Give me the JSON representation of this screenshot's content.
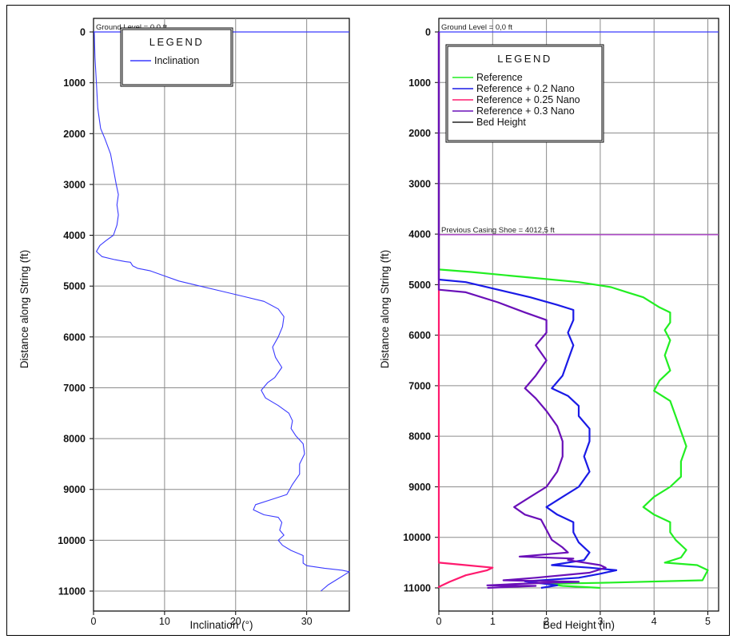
{
  "chart_data": [
    {
      "type": "line",
      "orientation": "vertical-depth",
      "title": "",
      "xlabel": "Inclination (°)",
      "ylabel": "Distance along String (ft)",
      "xlim": [
        0,
        36
      ],
      "ylim": [
        0,
        11000
      ],
      "y_inverted": true,
      "xticks": [
        0,
        10,
        20,
        30
      ],
      "yticks": [
        0,
        1000,
        2000,
        3000,
        4000,
        5000,
        6000,
        7000,
        8000,
        9000,
        10000,
        11000
      ],
      "grid": true,
      "legend": {
        "title": "LEGEND",
        "placement": "top-center"
      },
      "annotations": [
        {
          "text": "Ground Level = 0,0 ft",
          "depth": 0
        }
      ],
      "series": [
        {
          "name": "Inclination",
          "color": "#3a3aff",
          "points": [
            [
              0.1,
              0
            ],
            [
              0.2,
              500
            ],
            [
              0.4,
              1000
            ],
            [
              0.6,
              1500
            ],
            [
              1.0,
              1900
            ],
            [
              1.6,
              2100
            ],
            [
              2.4,
              2400
            ],
            [
              2.8,
              2700
            ],
            [
              3.2,
              3000
            ],
            [
              3.5,
              3200
            ],
            [
              3.3,
              3400
            ],
            [
              3.5,
              3600
            ],
            [
              3.3,
              3800
            ],
            [
              2.8,
              4000
            ],
            [
              1.8,
              4100
            ],
            [
              0.9,
              4200
            ],
            [
              0.4,
              4320
            ],
            [
              1.2,
              4420
            ],
            [
              3.0,
              4480
            ],
            [
              4.5,
              4520
            ],
            [
              5.2,
              4530
            ],
            [
              5.5,
              4600
            ],
            [
              6.2,
              4650
            ],
            [
              8.0,
              4700
            ],
            [
              10.0,
              4800
            ],
            [
              12.0,
              4900
            ],
            [
              15.0,
              5000
            ],
            [
              18.0,
              5100
            ],
            [
              21.0,
              5200
            ],
            [
              24.0,
              5300
            ],
            [
              26.0,
              5450
            ],
            [
              26.8,
              5600
            ],
            [
              26.6,
              5800
            ],
            [
              26.0,
              6000
            ],
            [
              25.2,
              6200
            ],
            [
              25.6,
              6400
            ],
            [
              26.5,
              6600
            ],
            [
              25.5,
              6800
            ],
            [
              24.5,
              6900
            ],
            [
              23.6,
              7050
            ],
            [
              24.2,
              7200
            ],
            [
              26.0,
              7350
            ],
            [
              27.5,
              7500
            ],
            [
              28.0,
              7650
            ],
            [
              27.8,
              7800
            ],
            [
              28.5,
              7950
            ],
            [
              29.5,
              8100
            ],
            [
              29.7,
              8300
            ],
            [
              29.0,
              8500
            ],
            [
              29.0,
              8700
            ],
            [
              28.0,
              8900
            ],
            [
              27.2,
              9100
            ],
            [
              25.0,
              9200
            ],
            [
              22.8,
              9300
            ],
            [
              22.5,
              9400
            ],
            [
              24.0,
              9500
            ],
            [
              26.0,
              9550
            ],
            [
              26.5,
              9650
            ],
            [
              26.2,
              9800
            ],
            [
              26.8,
              9900
            ],
            [
              26.0,
              10000
            ],
            [
              26.6,
              10100
            ],
            [
              27.8,
              10200
            ],
            [
              29.5,
              10300
            ],
            [
              29.5,
              10450
            ],
            [
              30.0,
              10500
            ],
            [
              32.5,
              10550
            ],
            [
              35.0,
              10590
            ],
            [
              36.0,
              10620
            ],
            [
              34.5,
              10750
            ],
            [
              33.0,
              10880
            ],
            [
              32.0,
              11000
            ]
          ]
        }
      ]
    },
    {
      "type": "line",
      "orientation": "vertical-depth",
      "title": "",
      "xlabel": "Bed Height (in)",
      "ylabel": "Distance along String (ft)",
      "xlim": [
        0,
        5.2
      ],
      "ylim": [
        0,
        11000
      ],
      "y_inverted": true,
      "xticks": [
        0,
        1,
        2,
        3,
        4,
        5
      ],
      "yticks": [
        0,
        1000,
        2000,
        3000,
        4000,
        5000,
        6000,
        7000,
        8000,
        9000,
        10000,
        11000
      ],
      "grid": true,
      "legend": {
        "title": "LEGEND",
        "placement": "top-left"
      },
      "annotations": [
        {
          "text": "Ground Level = 0,0 ft",
          "depth": 0
        },
        {
          "text": "Previous Casing Shoe = 4012,5 ft",
          "depth": 4012.5
        }
      ],
      "series": [
        {
          "name": "Reference",
          "color": "#22ee22",
          "points": [
            [
              0,
              0
            ],
            [
              0,
              4700
            ],
            [
              0.6,
              4750
            ],
            [
              1.6,
              4850
            ],
            [
              2.6,
              4950
            ],
            [
              3.2,
              5050
            ],
            [
              3.5,
              5150
            ],
            [
              3.8,
              5250
            ],
            [
              4.1,
              5450
            ],
            [
              4.3,
              5550
            ],
            [
              4.3,
              5750
            ],
            [
              4.2,
              5900
            ],
            [
              4.3,
              6100
            ],
            [
              4.2,
              6400
            ],
            [
              4.3,
              6700
            ],
            [
              4.1,
              6900
            ],
            [
              4.0,
              7100
            ],
            [
              4.3,
              7300
            ],
            [
              4.4,
              7600
            ],
            [
              4.5,
              7900
            ],
            [
              4.6,
              8200
            ],
            [
              4.5,
              8500
            ],
            [
              4.5,
              8800
            ],
            [
              4.3,
              9000
            ],
            [
              4.0,
              9200
            ],
            [
              3.8,
              9400
            ],
            [
              4.0,
              9550
            ],
            [
              4.3,
              9700
            ],
            [
              4.3,
              9900
            ],
            [
              4.4,
              10050
            ],
            [
              4.6,
              10250
            ],
            [
              4.5,
              10400
            ],
            [
              4.2,
              10500
            ],
            [
              4.8,
              10550
            ],
            [
              5.0,
              10650
            ],
            [
              4.9,
              10850
            ],
            [
              3.0,
              10900
            ],
            [
              2.0,
              10920
            ],
            [
              2.3,
              10960
            ],
            [
              3.0,
              11000
            ]
          ]
        },
        {
          "name": "Reference + 0.2 Nano",
          "color": "#1a1ae6",
          "points": [
            [
              0,
              0
            ],
            [
              0,
              4900
            ],
            [
              0.5,
              4950
            ],
            [
              1.1,
              5100
            ],
            [
              1.7,
              5250
            ],
            [
              2.2,
              5400
            ],
            [
              2.5,
              5500
            ],
            [
              2.5,
              5700
            ],
            [
              2.4,
              5950
            ],
            [
              2.5,
              6200
            ],
            [
              2.4,
              6500
            ],
            [
              2.3,
              6800
            ],
            [
              2.1,
              7050
            ],
            [
              2.4,
              7200
            ],
            [
              2.6,
              7400
            ],
            [
              2.6,
              7600
            ],
            [
              2.8,
              7850
            ],
            [
              2.8,
              8100
            ],
            [
              2.7,
              8400
            ],
            [
              2.8,
              8700
            ],
            [
              2.6,
              9000
            ],
            [
              2.3,
              9200
            ],
            [
              2.0,
              9400
            ],
            [
              2.2,
              9550
            ],
            [
              2.5,
              9700
            ],
            [
              2.5,
              9900
            ],
            [
              2.6,
              10100
            ],
            [
              2.8,
              10300
            ],
            [
              2.7,
              10450
            ],
            [
              2.1,
              10550
            ],
            [
              2.8,
              10600
            ],
            [
              3.3,
              10650
            ],
            [
              3.0,
              10720
            ],
            [
              2.6,
              10800
            ],
            [
              1.6,
              10870
            ],
            [
              2.2,
              10950
            ],
            [
              1.9,
              11000
            ]
          ]
        },
        {
          "name": "Reference + 0.25 Nano",
          "color": "#ff1a6e",
          "points": [
            [
              0,
              0
            ],
            [
              0,
              10500
            ],
            [
              0.4,
              10540
            ],
            [
              1.0,
              10600
            ],
            [
              0.9,
              10650
            ],
            [
              0.5,
              10750
            ],
            [
              0.2,
              10880
            ],
            [
              0,
              10980
            ],
            [
              0,
              11000
            ]
          ]
        },
        {
          "name": "Reference + 0.3 Nano",
          "color": "#6a10b8",
          "points": [
            [
              0,
              0
            ],
            [
              0,
              5100
            ],
            [
              0.5,
              5150
            ],
            [
              1.1,
              5350
            ],
            [
              1.6,
              5550
            ],
            [
              2.0,
              5700
            ],
            [
              2.0,
              5950
            ],
            [
              1.8,
              6200
            ],
            [
              2.0,
              6500
            ],
            [
              1.8,
              6800
            ],
            [
              1.6,
              7050
            ],
            [
              1.8,
              7250
            ],
            [
              2.0,
              7500
            ],
            [
              2.2,
              7800
            ],
            [
              2.3,
              8100
            ],
            [
              2.3,
              8400
            ],
            [
              2.2,
              8700
            ],
            [
              2.0,
              9000
            ],
            [
              1.7,
              9200
            ],
            [
              1.4,
              9400
            ],
            [
              1.6,
              9550
            ],
            [
              1.9,
              9650
            ],
            [
              2.0,
              9850
            ],
            [
              2.1,
              10050
            ],
            [
              2.3,
              10200
            ],
            [
              2.4,
              10300
            ],
            [
              1.5,
              10380
            ],
            [
              2.5,
              10420
            ],
            [
              2.4,
              10450
            ],
            [
              3.0,
              10550
            ],
            [
              3.1,
              10600
            ],
            [
              2.8,
              10700
            ],
            [
              1.8,
              10800
            ],
            [
              1.2,
              10850
            ],
            [
              2.6,
              10880
            ],
            [
              1.5,
              10920
            ],
            [
              0.9,
              10950
            ],
            [
              1.8,
              10960
            ],
            [
              0.9,
              11000
            ]
          ]
        },
        {
          "name": "Bed Height",
          "color": "#222222",
          "points": []
        }
      ]
    }
  ]
}
